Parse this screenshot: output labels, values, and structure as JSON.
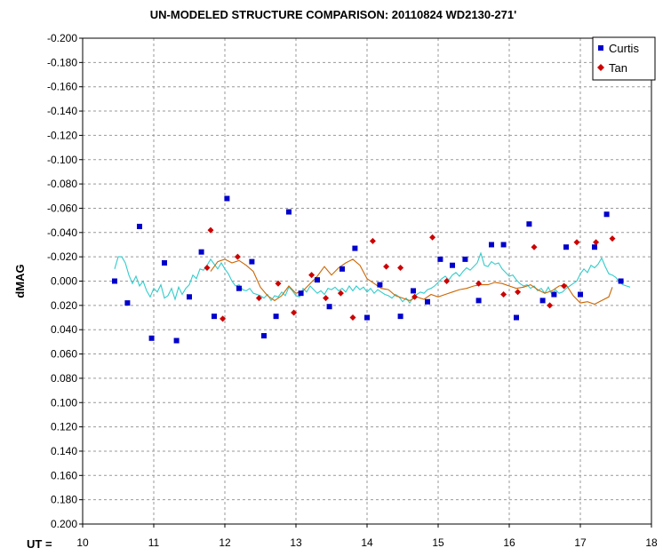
{
  "chart_data": {
    "type": "scatter",
    "title": "UN-MODELED STRUCTURE COMPARISON: 20110824 WD2130-271'",
    "ylabel": "dMAG",
    "xlabel": "UT =",
    "xlim": [
      10,
      18
    ],
    "ylim": [
      -0.2,
      0.2
    ],
    "y_inverted": true,
    "x_ticks": [
      "10",
      "11",
      "12",
      "13",
      "14",
      "15",
      "16",
      "17",
      "18"
    ],
    "y_ticks": [
      "-0.200",
      "-0.180",
      "-0.160",
      "-0.140",
      "-0.120",
      "-0.100",
      "-0.080",
      "-0.060",
      "-0.040",
      "-0.020",
      "0.000",
      "0.020",
      "0.040",
      "0.060",
      "0.080",
      "0.100",
      "0.120",
      "0.140",
      "0.160",
      "0.180",
      "0.200"
    ],
    "grid": true,
    "legend_position": "top-right",
    "series": [
      {
        "name": "Curtis",
        "kind": "points",
        "marker": "square",
        "color": "#0000cc",
        "x": [
          10.45,
          10.63,
          10.8,
          10.97,
          11.15,
          11.32,
          11.5,
          11.67,
          11.85,
          12.03,
          12.2,
          12.38,
          12.55,
          12.72,
          12.9,
          13.07,
          13.3,
          13.47,
          13.65,
          13.83,
          14.0,
          14.18,
          14.47,
          14.65,
          14.85,
          15.03,
          15.2,
          15.38,
          15.57,
          15.75,
          15.92,
          16.1,
          16.28,
          16.47,
          16.63,
          16.8,
          17.0,
          17.2,
          17.37,
          17.57
        ],
        "y": [
          0.0,
          0.018,
          -0.045,
          0.047,
          -0.015,
          0.049,
          0.013,
          -0.024,
          0.029,
          -0.068,
          0.006,
          -0.016,
          0.045,
          0.029,
          -0.057,
          0.01,
          -0.001,
          0.021,
          -0.01,
          -0.027,
          0.03,
          0.003,
          0.029,
          0.008,
          0.017,
          -0.018,
          -0.013,
          -0.018,
          0.016,
          -0.03,
          -0.03,
          0.03,
          -0.047,
          0.016,
          0.011,
          -0.028,
          0.011,
          -0.028,
          -0.055,
          0.0
        ]
      },
      {
        "name": "Tan",
        "kind": "points",
        "marker": "diamond",
        "color": "#cc0000",
        "x": [
          11.75,
          11.8,
          11.97,
          12.18,
          12.48,
          12.75,
          12.97,
          13.22,
          13.42,
          13.63,
          13.8,
          14.08,
          14.27,
          14.47,
          14.67,
          14.92,
          15.12,
          15.57,
          15.92,
          16.12,
          16.35,
          16.57,
          16.77,
          16.95,
          17.22,
          17.45
        ],
        "y": [
          -0.011,
          -0.042,
          0.031,
          -0.02,
          0.014,
          0.002,
          0.026,
          -0.005,
          0.014,
          0.01,
          0.03,
          -0.033,
          -0.012,
          -0.011,
          0.013,
          -0.036,
          0.0,
          0.002,
          0.011,
          0.009,
          -0.028,
          0.02,
          0.004,
          -0.032,
          -0.032,
          -0.035
        ]
      },
      {
        "kind": "line",
        "color": "#33cccc",
        "x": [
          10.45,
          10.5,
          10.55,
          10.6,
          10.65,
          10.7,
          10.75,
          10.8,
          10.85,
          10.9,
          10.95,
          11.0,
          11.05,
          11.1,
          11.15,
          11.2,
          11.25,
          11.3,
          11.35,
          11.4,
          11.45,
          11.5,
          11.55,
          11.6,
          11.65,
          11.7,
          11.75,
          11.8,
          11.85,
          11.9,
          11.95,
          12.0,
          12.05,
          12.1,
          12.15,
          12.2,
          12.25,
          12.3,
          12.35,
          12.4,
          12.45,
          12.5,
          12.55,
          12.6,
          12.65,
          12.7,
          12.75,
          12.8,
          12.85,
          12.9,
          12.95,
          13.0,
          13.05,
          13.1,
          13.15,
          13.2,
          13.25,
          13.3,
          13.35,
          13.4,
          13.45,
          13.5,
          13.55,
          13.6,
          13.65,
          13.7,
          13.75,
          13.8,
          13.85,
          13.9,
          13.95,
          14.0,
          14.05,
          14.1,
          14.15,
          14.2,
          14.25,
          14.3,
          14.35,
          14.4,
          14.45,
          14.5,
          14.55,
          14.6,
          14.65,
          14.7,
          14.75,
          14.8,
          14.85,
          14.9,
          14.95,
          15.0,
          15.05,
          15.1,
          15.15,
          15.2,
          15.25,
          15.3,
          15.35,
          15.4,
          15.45,
          15.5,
          15.55,
          15.6,
          15.65,
          15.7,
          15.75,
          15.8,
          15.85,
          15.9,
          15.95,
          16.0,
          16.05,
          16.1,
          16.15,
          16.2,
          16.25,
          16.3,
          16.35,
          16.4,
          16.45,
          16.5,
          16.55,
          16.6,
          16.65,
          16.7,
          16.75,
          16.8,
          16.85,
          16.9,
          16.95,
          17.0,
          17.05,
          17.1,
          17.15,
          17.2,
          17.25,
          17.3,
          17.35,
          17.4,
          17.45,
          17.5,
          17.55,
          17.6,
          17.65,
          17.7
        ],
        "y": [
          -0.01,
          -0.02,
          -0.02,
          -0.015,
          -0.005,
          0.002,
          -0.004,
          0.004,
          0.0,
          0.008,
          0.013,
          0.006,
          0.009,
          0.003,
          0.014,
          0.012,
          0.006,
          0.015,
          0.005,
          0.011,
          0.006,
          0.003,
          -0.005,
          -0.002,
          -0.01,
          -0.009,
          -0.013,
          -0.018,
          -0.014,
          -0.01,
          -0.015,
          -0.01,
          -0.006,
          0.0,
          0.004,
          0.003,
          0.007,
          0.008,
          0.006,
          0.01,
          0.011,
          0.012,
          0.014,
          0.011,
          0.016,
          0.012,
          0.013,
          0.009,
          0.012,
          0.005,
          0.008,
          0.012,
          0.013,
          0.006,
          0.009,
          0.004,
          0.007,
          0.01,
          0.008,
          0.011,
          0.006,
          0.007,
          0.005,
          0.008,
          0.006,
          0.009,
          0.004,
          0.008,
          0.004,
          0.007,
          0.005,
          0.009,
          0.006,
          0.01,
          0.007,
          0.009,
          0.011,
          0.012,
          0.014,
          0.011,
          0.013,
          0.017,
          0.014,
          0.018,
          0.013,
          0.011,
          0.009,
          0.01,
          0.007,
          0.006,
          0.004,
          0.001,
          -0.002,
          -0.004,
          -0.001,
          -0.005,
          -0.007,
          -0.004,
          -0.008,
          -0.011,
          -0.009,
          -0.012,
          -0.015,
          -0.023,
          -0.013,
          -0.012,
          -0.016,
          -0.014,
          -0.015,
          -0.01,
          -0.007,
          -0.004,
          -0.005,
          -0.001,
          0.002,
          0.004,
          0.003,
          0.006,
          0.004,
          0.008,
          0.006,
          0.01,
          0.005,
          0.011,
          0.007,
          0.01,
          0.009,
          0.006,
          0.004,
          0.002,
          0.0,
          -0.006,
          -0.01,
          -0.007,
          -0.013,
          -0.011,
          -0.014,
          -0.019,
          -0.012,
          -0.006,
          -0.005,
          -0.003,
          0.001,
          0.003,
          0.004,
          0.005
        ]
      },
      {
        "kind": "line",
        "color": "#cc6600",
        "x": [
          11.8,
          11.9,
          12.0,
          12.1,
          12.2,
          12.3,
          12.4,
          12.5,
          12.6,
          12.7,
          12.8,
          12.9,
          13.0,
          13.1,
          13.2,
          13.3,
          13.4,
          13.5,
          13.6,
          13.7,
          13.8,
          13.9,
          14.0,
          14.1,
          14.2,
          14.3,
          14.4,
          14.5,
          14.6,
          14.7,
          14.8,
          14.9,
          15.0,
          15.1,
          15.2,
          15.3,
          15.4,
          15.5,
          15.6,
          15.7,
          15.8,
          15.9,
          16.0,
          16.1,
          16.2,
          16.3,
          16.4,
          16.5,
          16.6,
          16.7,
          16.8,
          16.9,
          17.0,
          17.1,
          17.2,
          17.3,
          17.4,
          17.45
        ],
        "y": [
          -0.008,
          -0.016,
          -0.018,
          -0.015,
          -0.017,
          -0.013,
          -0.008,
          0.005,
          0.012,
          0.016,
          0.012,
          0.004,
          0.01,
          0.008,
          0.002,
          -0.004,
          -0.012,
          -0.005,
          -0.011,
          -0.015,
          -0.018,
          -0.013,
          -0.002,
          0.002,
          0.006,
          0.007,
          0.012,
          0.014,
          0.016,
          0.013,
          0.015,
          0.011,
          0.013,
          0.011,
          0.009,
          0.007,
          0.006,
          0.004,
          0.003,
          0.003,
          0.001,
          0.002,
          0.004,
          0.006,
          0.005,
          0.003,
          0.007,
          0.01,
          0.008,
          0.004,
          0.003,
          0.012,
          0.018,
          0.017,
          0.019,
          0.016,
          0.013,
          0.005
        ]
      }
    ]
  }
}
